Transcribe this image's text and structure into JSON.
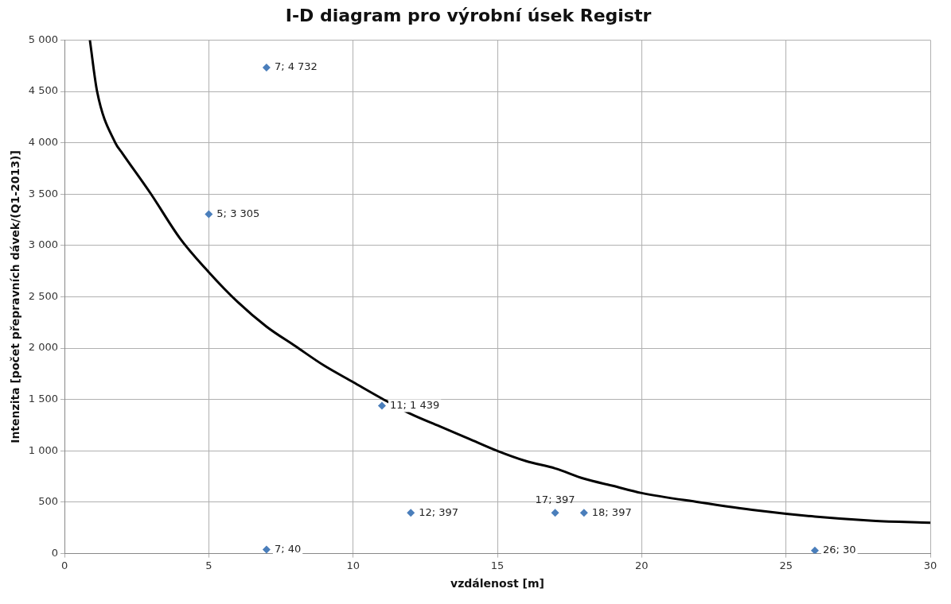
{
  "chart_data": {
    "type": "scatter",
    "title": "I-D diagram pro výrobní úsek Registr",
    "xlabel": "vzdálenost [m]",
    "ylabel": "Intenzita [počet přepravních dávek/(Q1-2013)]",
    "xlim": [
      0,
      30
    ],
    "xticks": [
      0,
      5,
      10,
      15,
      20,
      25,
      30
    ],
    "ylim": [
      0,
      5000
    ],
    "yticks": [
      0,
      500,
      {
        "value": 1000,
        "label": "1 000"
      },
      {
        "value": 1500,
        "label": "1 500"
      },
      {
        "value": 2000,
        "label": "2 000"
      },
      {
        "value": 2500,
        "label": "2 500"
      },
      {
        "value": 3000,
        "label": "3 000"
      },
      {
        "value": 3500,
        "label": "3 500"
      },
      {
        "value": 4000,
        "label": "4 000"
      },
      {
        "value": 4500,
        "label": "4 500"
      },
      {
        "value": 5000,
        "label": "5 000"
      }
    ],
    "grid": true,
    "legend": false,
    "series": [
      {
        "color": "#4a7ebb",
        "marker": "diamond",
        "x": [
          7,
          5,
          11,
          12,
          17,
          18,
          7,
          26
        ],
        "values": [
          4732,
          3305,
          1439,
          397,
          397,
          397,
          40,
          30
        ],
        "value_labels": [
          "7; 4 732",
          "5; 3 305",
          "11; 1 439",
          "12; 397",
          "17; 397",
          "18; 397",
          "7; 40",
          "26; 30"
        ]
      },
      {
        "type": "line",
        "color": "#000000",
        "marker": "none",
        "x": [
          0.88,
          1.13,
          1.76,
          2,
          3,
          4,
          5,
          6,
          7,
          8,
          9,
          10,
          11,
          12,
          13,
          14,
          15,
          16,
          17,
          18,
          19,
          20,
          22,
          24,
          26,
          28,
          30
        ],
        "values": [
          5000,
          4500,
          4000,
          3900,
          3500,
          3070,
          2740,
          2450,
          2210,
          2020,
          1830,
          1670,
          1510,
          1360,
          1240,
          1120,
          1000,
          900,
          830,
          730,
          660,
          590,
          500,
          420,
          360,
          320,
          300
        ]
      }
    ]
  }
}
